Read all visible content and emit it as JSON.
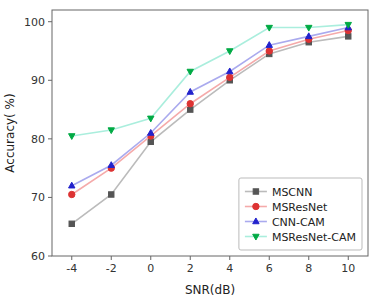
{
  "chart_data": {
    "type": "line",
    "xlabel": "SNR(dB)",
    "ylabel": "Accuracy( %)",
    "x": [
      -4,
      -2,
      0,
      2,
      4,
      6,
      8,
      10
    ],
    "series": [
      {
        "name": "MSCNN",
        "color": "#bbbbbb",
        "marker": "square",
        "colors": [
          "#555555",
          "#555555",
          "#555555",
          "#555555",
          "#555555",
          "#555555",
          "#555555",
          "#555555"
        ],
        "values": [
          65.5,
          70.5,
          79.5,
          85.0,
          90.0,
          94.5,
          96.5,
          97.5
        ]
      },
      {
        "name": "MSResNet",
        "color": "#f5aaaa",
        "marker": "circle",
        "colors": [
          "#dd3333",
          "#dd3333",
          "#dd3333",
          "#dd3333",
          "#dd3333",
          "#dd3333",
          "#dd3333",
          "#dd3333"
        ],
        "values": [
          70.5,
          75.0,
          80.5,
          86.0,
          90.5,
          95.0,
          97.0,
          98.5
        ]
      },
      {
        "name": "CNN-CAM",
        "color": "#aaaaee",
        "marker": "triangle-up",
        "colors": [
          "#2222cc",
          "#2222cc",
          "#2222cc",
          "#2222cc",
          "#2222cc",
          "#2222cc",
          "#2222cc",
          "#2222cc"
        ],
        "values": [
          72.0,
          75.5,
          81.0,
          88.0,
          91.5,
          96.0,
          97.5,
          99.0
        ]
      },
      {
        "name": "MSResNet-CAM",
        "color": "#aaeedd",
        "marker": "triangle-down",
        "colors": [
          "#00aa44",
          "#00aa44",
          "#00aa44",
          "#00aa44",
          "#00aa44",
          "#00aa44",
          "#00aa44",
          "#00aa44"
        ],
        "values": [
          80.5,
          81.5,
          83.5,
          91.5,
          95.0,
          99.0,
          99.0,
          99.5
        ]
      }
    ],
    "xlim": [
      -5,
      11
    ],
    "xticks": [
      -4,
      -2,
      0,
      2,
      4,
      6,
      8,
      10
    ],
    "ylim": [
      60,
      102
    ],
    "yticks": [
      60,
      70,
      80,
      90,
      100
    ],
    "grid": false,
    "legend": "lower right"
  }
}
